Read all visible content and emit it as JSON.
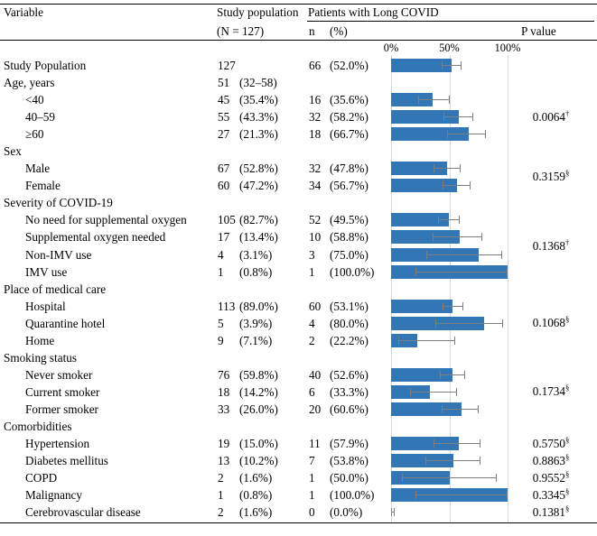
{
  "table": {
    "headers": {
      "variable": "Variable",
      "study_population": "Study population",
      "study_population_n": "(N = 127)",
      "long_covid": "Patients with Long COVID",
      "n": "n",
      "pct": "(%)",
      "p_value": "P value"
    },
    "axis": {
      "ticks": [
        "0%",
        "50%",
        "100%"
      ],
      "tick_values": [
        0,
        50,
        100
      ]
    },
    "rows": [
      {
        "label": "Study Population",
        "indent": 0,
        "study_n": "127",
        "study_pct": "",
        "lc_n": "66",
        "lc_pct": "(52.0%)",
        "bar": 52.0,
        "ci": [
          43.3,
          60.5
        ]
      },
      {
        "label": "Age, years",
        "indent": 0,
        "study_n": "51",
        "study_pct": "(32–58)"
      },
      {
        "label": "<40",
        "indent": 1,
        "study_n": "45",
        "study_pct": "(35.4%)",
        "lc_n": "16",
        "lc_pct": "(35.6%)",
        "bar": 35.6,
        "ci": [
          23.2,
          50.2
        ]
      },
      {
        "label": "40–59",
        "indent": 1,
        "study_n": "55",
        "study_pct": "(43.3%)",
        "lc_n": "32",
        "lc_pct": "(58.2%)",
        "bar": 58.2,
        "ci": [
          45.0,
          70.3
        ]
      },
      {
        "label": "≥60",
        "indent": 1,
        "study_n": "27",
        "study_pct": "(21.3%)",
        "lc_n": "18",
        "lc_pct": "(66.7%)",
        "bar": 66.7,
        "ci": [
          47.8,
          81.4
        ]
      },
      {
        "label": "Sex",
        "indent": 0
      },
      {
        "label": "Male",
        "indent": 1,
        "study_n": "67",
        "study_pct": "(52.8%)",
        "lc_n": "32",
        "lc_pct": "(47.8%)",
        "bar": 47.8,
        "ci": [
          36.3,
          59.5
        ]
      },
      {
        "label": "Female",
        "indent": 1,
        "study_n": "60",
        "study_pct": "(47.2%)",
        "lc_n": "34",
        "lc_pct": "(56.7%)",
        "bar": 56.7,
        "ci": [
          44.1,
          68.4
        ]
      },
      {
        "label": "Severity of COVID-19",
        "indent": 0
      },
      {
        "label": "No need for supplemental oxygen",
        "indent": 1,
        "study_n": "105",
        "study_pct": "(82.7%)",
        "lc_n": "52",
        "lc_pct": "(49.5%)",
        "bar": 49.5,
        "ci": [
          40.1,
          58.9
        ]
      },
      {
        "label": "Supplemental oxygen needed",
        "indent": 1,
        "study_n": "17",
        "study_pct": "(13.4%)",
        "lc_n": "10",
        "lc_pct": "(58.8%)",
        "bar": 58.8,
        "ci": [
          36.0,
          78.4
        ]
      },
      {
        "label": "Non-IMV use",
        "indent": 1,
        "study_n": "4",
        "study_pct": "(3.1%)",
        "lc_n": "3",
        "lc_pct": "(75.0%)",
        "bar": 75.0,
        "ci": [
          30.1,
          95.4
        ]
      },
      {
        "label": "IMV use",
        "indent": 1,
        "study_n": "1",
        "study_pct": "(0.8%)",
        "lc_n": "1",
        "lc_pct": "(100.0%)",
        "bar": 100.0,
        "ci": [
          20.7,
          100.0
        ]
      },
      {
        "label": "Place of medical care",
        "indent": 0
      },
      {
        "label": "Hospital",
        "indent": 1,
        "study_n": "113",
        "study_pct": "(89.0%)",
        "lc_n": "60",
        "lc_pct": "(53.1%)",
        "bar": 53.1,
        "ci": [
          43.9,
          62.0
        ]
      },
      {
        "label": "Quarantine hotel",
        "indent": 1,
        "study_n": "5",
        "study_pct": "(3.9%)",
        "lc_n": "4",
        "lc_pct": "(80.0%)",
        "bar": 80.0,
        "ci": [
          37.6,
          96.4
        ]
      },
      {
        "label": "Home",
        "indent": 1,
        "study_n": "9",
        "study_pct": "(7.1%)",
        "lc_n": "2",
        "lc_pct": "(22.2%)",
        "bar": 22.2,
        "ci": [
          6.3,
          54.7
        ]
      },
      {
        "label": "Smoking status",
        "indent": 0
      },
      {
        "label": "Never smoker",
        "indent": 1,
        "study_n": "76",
        "study_pct": "(59.8%)",
        "lc_n": "40",
        "lc_pct": "(52.6%)",
        "bar": 52.6,
        "ci": [
          41.6,
          63.5
        ]
      },
      {
        "label": "Current smoker",
        "indent": 1,
        "study_n": "18",
        "study_pct": "(14.2%)",
        "lc_n": "6",
        "lc_pct": "(33.3%)",
        "bar": 33.3,
        "ci": [
          16.3,
          56.3
        ]
      },
      {
        "label": "Former smoker",
        "indent": 1,
        "study_n": "33",
        "study_pct": "(26.0%)",
        "lc_n": "20",
        "lc_pct": "(60.6%)",
        "bar": 60.6,
        "ci": [
          43.7,
          75.3
        ]
      },
      {
        "label": "Comorbidities",
        "indent": 0
      },
      {
        "label": "Hypertension",
        "indent": 1,
        "study_n": "19",
        "study_pct": "(15.0%)",
        "lc_n": "11",
        "lc_pct": "(57.9%)",
        "bar": 57.9,
        "ci": [
          36.3,
          76.9
        ]
      },
      {
        "label": "Diabetes mellitus",
        "indent": 1,
        "study_n": "13",
        "study_pct": "(10.2%)",
        "lc_n": "7",
        "lc_pct": "(53.8%)",
        "bar": 53.8,
        "ci": [
          29.1,
          76.8
        ]
      },
      {
        "label": "COPD",
        "indent": 1,
        "study_n": "2",
        "study_pct": "(1.6%)",
        "lc_n": "1",
        "lc_pct": "(50.0%)",
        "bar": 50.0,
        "ci": [
          9.5,
          90.5
        ]
      },
      {
        "label": "Malignancy",
        "indent": 1,
        "study_n": "1",
        "study_pct": "(0.8%)",
        "lc_n": "1",
        "lc_pct": "(100.0%)",
        "bar": 100.0,
        "ci": [
          20.7,
          100.0
        ]
      },
      {
        "label": "Cerebrovascular disease",
        "indent": 1,
        "study_n": "2",
        "study_pct": "(1.6%)",
        "lc_n": "0",
        "lc_pct": "(0.0%)",
        "bar": 0.0,
        "ci": [
          0.0,
          3.0
        ]
      }
    ],
    "p_values": [
      {
        "value": "0.0064",
        "marker": "†",
        "rows": [
          2,
          4
        ]
      },
      {
        "value": "0.3159",
        "marker": "§",
        "rows": [
          6,
          7
        ]
      },
      {
        "value": "0.1368",
        "marker": "†",
        "rows": [
          9,
          12
        ]
      },
      {
        "value": "0.1068",
        "marker": "§",
        "rows": [
          14,
          16
        ]
      },
      {
        "value": "0.1734",
        "marker": "§",
        "rows": [
          18,
          20
        ]
      },
      {
        "value": "0.5750",
        "marker": "§",
        "rows": [
          22,
          22
        ]
      },
      {
        "value": "0.8863",
        "marker": "§",
        "rows": [
          23,
          23
        ]
      },
      {
        "value": "0.9552",
        "marker": "§",
        "rows": [
          24,
          24
        ]
      },
      {
        "value": "0.3345",
        "marker": "§",
        "rows": [
          25,
          25
        ]
      },
      {
        "value": "0.1381",
        "marker": "§",
        "rows": [
          26,
          26
        ]
      }
    ]
  },
  "chart_data": {
    "type": "bar",
    "orientation": "horizontal",
    "title": "Patients with Long COVID (%)",
    "x_ticks": [
      "0%",
      "50%",
      "100%"
    ],
    "xlim": [
      0,
      100
    ],
    "grid": true,
    "legend": false,
    "bar_color": "#3276B5",
    "error_bar_color": "#7F7F7F",
    "categories": [
      "Study Population",
      "<40",
      "40–59",
      "≥60",
      "Male",
      "Female",
      "No need for supplemental oxygen",
      "Supplemental oxygen needed",
      "Non-IMV use",
      "IMV use",
      "Hospital",
      "Quarantine hotel",
      "Home",
      "Never smoker",
      "Current smoker",
      "Former smoker",
      "Hypertension",
      "Diabetes mellitus",
      "COPD",
      "Malignancy",
      "Cerebrovascular disease"
    ],
    "values": [
      52.0,
      35.6,
      58.2,
      66.7,
      47.8,
      56.7,
      49.5,
      58.8,
      75.0,
      100.0,
      53.1,
      80.0,
      22.2,
      52.6,
      33.3,
      60.6,
      57.9,
      53.8,
      50.0,
      100.0,
      0.0
    ],
    "error_low": [
      43.3,
      23.2,
      45.0,
      47.8,
      36.3,
      44.1,
      40.1,
      36.0,
      30.1,
      20.7,
      43.9,
      37.6,
      6.3,
      41.6,
      16.3,
      43.7,
      36.3,
      29.1,
      9.5,
      20.7,
      0.0
    ],
    "error_high": [
      60.5,
      50.2,
      70.3,
      81.4,
      59.5,
      68.4,
      58.9,
      78.4,
      95.4,
      100.0,
      62.0,
      96.4,
      54.7,
      63.5,
      56.3,
      75.3,
      76.9,
      76.8,
      90.5,
      100.0,
      3.0
    ]
  }
}
